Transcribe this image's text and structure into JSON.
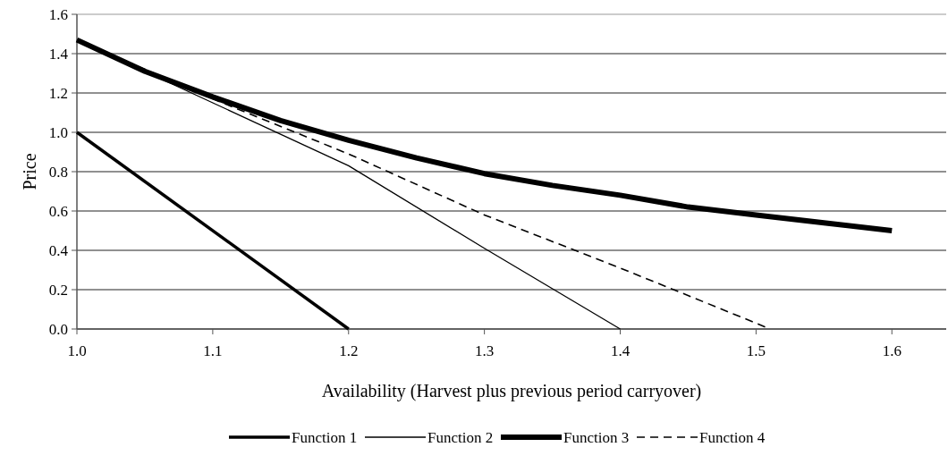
{
  "chart_data": {
    "type": "line",
    "xlabel": "Availability (Harvest plus previous period carryover)",
    "ylabel": "Price",
    "xlim": [
      1.0,
      1.64
    ],
    "xticks": [
      {
        "value": 1.0,
        "label": "1.0"
      },
      1.1,
      1.2,
      1.3,
      1.4,
      1.5,
      1.6
    ],
    "ylim": [
      0,
      1.6
    ],
    "yticks": [
      {
        "value": 0,
        "label": "0.0"
      },
      0.2,
      0.4,
      0.6,
      0.8,
      {
        "value": 1.0,
        "label": "1.0"
      },
      1.2,
      1.4,
      1.6
    ],
    "grid": "y",
    "legend": "bottom",
    "marker": "none",
    "series": [
      {
        "name": "Function 1",
        "color": "#000000",
        "line_style": "solid",
        "x": [
          1.0,
          1.2
        ],
        "values": [
          1.0,
          0
        ]
      },
      {
        "name": "Function 2",
        "color": "#000000",
        "line_style": "solid",
        "x": [
          1.0,
          1.1,
          1.2,
          1.3,
          1.4
        ],
        "values": [
          1.47,
          1.15,
          0.83,
          0.41,
          0
        ]
      },
      {
        "name": "Function 3",
        "color": "#000000",
        "line_style": "solid",
        "x": [
          1.0,
          1.05,
          1.1,
          1.15,
          1.2,
          1.25,
          1.3,
          1.35,
          1.4,
          1.45,
          1.5,
          1.55,
          1.6
        ],
        "values": [
          1.47,
          1.31,
          1.18,
          1.06,
          0.96,
          0.87,
          0.79,
          0.73,
          0.68,
          0.62,
          0.58,
          0.54,
          0.5
        ]
      },
      {
        "name": "Function 4",
        "color": "#000000",
        "line_style": "dashed",
        "x": [
          1.0,
          1.1,
          1.2,
          1.3,
          1.4,
          1.5,
          1.51
        ],
        "values": [
          1.47,
          1.17,
          0.89,
          0.58,
          0.31,
          0.03,
          0
        ]
      }
    ]
  }
}
